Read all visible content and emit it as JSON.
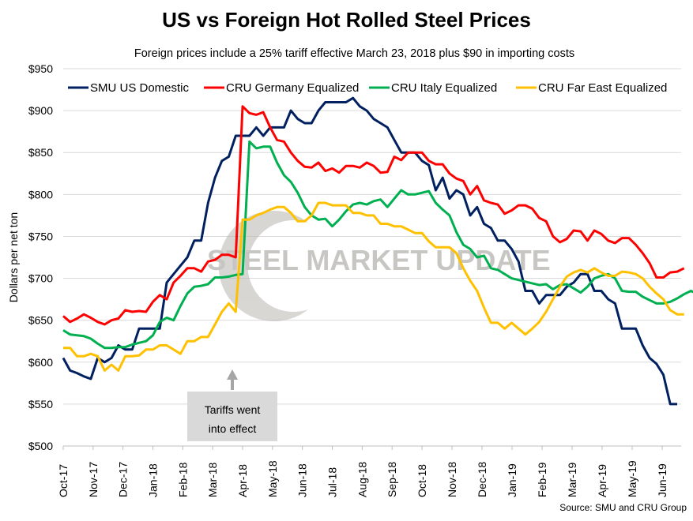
{
  "chart_data": {
    "type": "line",
    "title": "US vs Foreign Hot Rolled Steel Prices",
    "subtitle": "Foreign prices include a 25% tariff effective March 23, 2018 plus $90 in importing costs",
    "ylabel": "Dollars per net ton",
    "xlabel": "",
    "ylim": [
      500,
      950
    ],
    "y_ticks": [
      "$500",
      "$550",
      "$600",
      "$650",
      "$700",
      "$750",
      "$800",
      "$850",
      "$900",
      "$950"
    ],
    "x_ticks": [
      "Oct-17",
      "Nov-17",
      "Dec-17",
      "Jan-18",
      "Feb-18",
      "Mar-18",
      "Apr-18",
      "May-18",
      "Jun-18",
      "Jul-18",
      "Aug-18",
      "Sep-18",
      "Oct-18",
      "Nov-18",
      "Dec-18",
      "Jan-19",
      "Feb-19",
      "Mar-19",
      "Apr-19",
      "May-19",
      "Jun-19"
    ],
    "x_frequency": "weekly",
    "grid": "horizontal",
    "legend": "top",
    "annotation": {
      "text_line1": "Tariffs went",
      "text_line2": "into effect"
    },
    "source": "Source: SMU and CRU Group",
    "watermark": "STEEL MARKET UPDATE",
    "series": [
      {
        "name": "SMU US Domestic",
        "color": "#002060",
        "values": [
          605,
          590,
          587,
          583,
          580,
          605,
          600,
          605,
          620,
          615,
          615,
          640,
          640,
          640,
          640,
          695,
          705,
          715,
          725,
          745,
          745,
          790,
          820,
          840,
          845,
          870,
          870,
          870,
          880,
          870,
          880,
          880,
          880,
          900,
          890,
          885,
          885,
          900,
          910,
          910,
          910,
          910,
          915,
          905,
          900,
          890,
          885,
          880,
          865,
          850,
          850,
          850,
          840,
          835,
          805,
          820,
          795,
          805,
          800,
          775,
          785,
          765,
          760,
          745,
          745,
          735,
          720,
          685,
          685,
          670,
          680,
          680,
          680,
          690,
          695,
          705,
          705,
          685,
          685,
          675,
          670,
          640,
          640,
          640,
          620,
          605,
          598,
          585,
          550,
          550
        ]
      },
      {
        "name": "CRU Germany Equalized",
        "color": "#FF0000",
        "values": [
          655,
          648,
          652,
          657,
          653,
          648,
          645,
          650,
          652,
          662,
          660,
          661,
          660,
          672,
          680,
          675,
          695,
          703,
          712,
          712,
          708,
          720,
          722,
          728,
          728,
          725,
          905,
          897,
          895,
          898,
          880,
          865,
          863,
          850,
          840,
          833,
          832,
          838,
          828,
          831,
          826,
          834,
          834,
          832,
          838,
          834,
          826,
          827,
          845,
          841,
          850,
          850,
          850,
          840,
          836,
          836,
          825,
          819,
          816,
          800,
          810,
          793,
          790,
          788,
          777,
          781,
          787,
          787,
          783,
          772,
          768,
          750,
          743,
          747,
          757,
          756,
          745,
          757,
          753,
          745,
          742,
          748,
          748,
          740,
          730,
          718,
          701,
          701,
          707,
          708,
          712
        ]
      },
      {
        "name": "CRU Italy Equalized",
        "color": "#00B050",
        "values": [
          638,
          633,
          632,
          631,
          628,
          622,
          617,
          617,
          618,
          618,
          621,
          623,
          625,
          632,
          648,
          653,
          650,
          667,
          682,
          690,
          691,
          693,
          701,
          701,
          702,
          704,
          705,
          863,
          855,
          857,
          857,
          838,
          823,
          815,
          802,
          785,
          775,
          770,
          771,
          762,
          770,
          780,
          788,
          790,
          788,
          792,
          794,
          785,
          795,
          805,
          800,
          800,
          802,
          804,
          790,
          782,
          775,
          755,
          740,
          735,
          725,
          727,
          712,
          710,
          705,
          700,
          698,
          696,
          694,
          692,
          693,
          687,
          692,
          693,
          688,
          683,
          690,
          700,
          703,
          705,
          700,
          685,
          684,
          684,
          678,
          674,
          670,
          670,
          672,
          676,
          681,
          685,
          681
        ]
      },
      {
        "name": "CRU Far East Equalized",
        "color": "#FFC000",
        "values": [
          617,
          617,
          607,
          607,
          610,
          607,
          590,
          597,
          590,
          607,
          607,
          608,
          615,
          615,
          620,
          620,
          615,
          610,
          625,
          625,
          630,
          630,
          645,
          660,
          670,
          660,
          770,
          770,
          775,
          778,
          782,
          785,
          785,
          778,
          768,
          768,
          775,
          790,
          790,
          787,
          787,
          787,
          778,
          778,
          775,
          775,
          765,
          765,
          762,
          762,
          758,
          754,
          754,
          744,
          737,
          737,
          737,
          730,
          712,
          697,
          685,
          665,
          647,
          647,
          640,
          647,
          640,
          633,
          640,
          648,
          660,
          675,
          690,
          702,
          707,
          710,
          707,
          712,
          707,
          703,
          703,
          708,
          707,
          705,
          700,
          690,
          682,
          675,
          662,
          657,
          657
        ]
      }
    ]
  }
}
